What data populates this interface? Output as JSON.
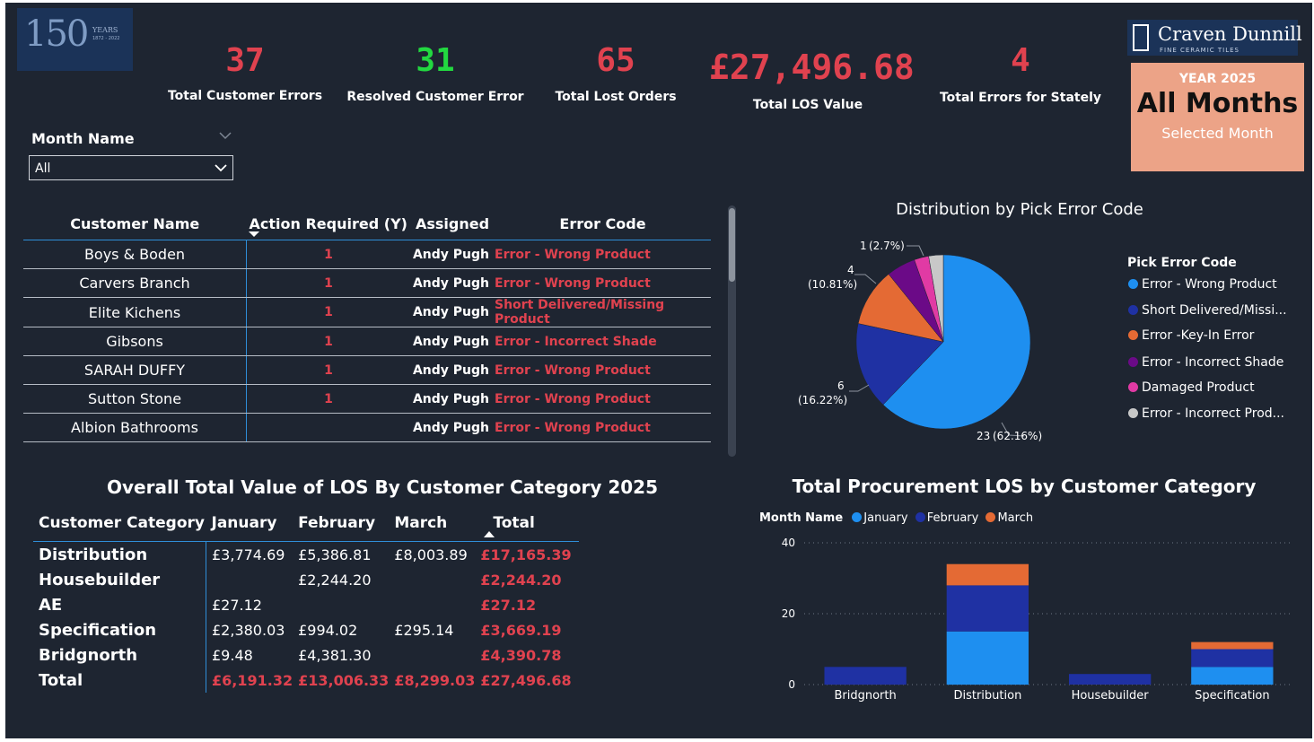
{
  "header": {
    "logo_150": {
      "text": "150",
      "years": "YEARS",
      "range": "1872 - 2022"
    },
    "brand": {
      "name": "Craven Dunnill",
      "tagline": "FINE CERAMIC TILES"
    },
    "year_box": {
      "year_label": "YEAR 2025",
      "months": "All Months",
      "caption": "Selected Month"
    }
  },
  "kpis": [
    {
      "value": "37",
      "label": "Total Customer Errors",
      "color": "#e0424f"
    },
    {
      "value": "31",
      "label": "Resolved Customer Error",
      "color": "#22d840"
    },
    {
      "value": "65",
      "label": "Total Lost Orders",
      "color": "#e0424f"
    },
    {
      "value": "£27,496.68",
      "label": "Total LOS Value",
      "color": "#e0424f"
    },
    {
      "value": "4",
      "label": "Total Errors for Stately",
      "color": "#e0424f"
    }
  ],
  "slicer": {
    "title": "Month Name",
    "value": "All"
  },
  "customer_table": {
    "headers": [
      "Customer Name",
      "Action Required (Y)",
      "Assigned",
      "Error Code"
    ],
    "rows": [
      {
        "name": "Boys & Boden",
        "action": "1",
        "assigned": "Andy Pugh",
        "error": "Error - Wrong Product"
      },
      {
        "name": "Carvers Branch",
        "action": "1",
        "assigned": "Andy Pugh",
        "error": "Error - Wrong Product"
      },
      {
        "name": "Elite Kichens",
        "action": "1",
        "assigned": "Andy Pugh",
        "error": "Short Delivered/Missing Product"
      },
      {
        "name": "Gibsons",
        "action": "1",
        "assigned": "Andy Pugh",
        "error": "Error - Incorrect Shade"
      },
      {
        "name": "SARAH DUFFY",
        "action": "1",
        "assigned": "Andy Pugh",
        "error": "Error - Wrong Product"
      },
      {
        "name": "Sutton Stone",
        "action": "1",
        "assigned": "Andy Pugh",
        "error": "Error - Wrong Product"
      },
      {
        "name": "Albion Bathrooms",
        "action": "",
        "assigned": "Andy Pugh",
        "error": "Error - Wrong Product"
      }
    ]
  },
  "matrix": {
    "title": "Overall Total Value of LOS By Customer Category 2025",
    "headers": [
      "Customer Category",
      "January",
      "February",
      "March",
      "Total"
    ],
    "rows": [
      {
        "cat": "Distribution",
        "jan": "£3,774.69",
        "feb": "£5,386.81",
        "mar": "£8,003.89",
        "total": "£17,165.39"
      },
      {
        "cat": "Housebuilder",
        "jan": "",
        "feb": "£2,244.20",
        "mar": "",
        "total": "£2,244.20"
      },
      {
        "cat": "AE",
        "jan": "£27.12",
        "feb": "",
        "mar": "",
        "total": "£27.12"
      },
      {
        "cat": "Specification",
        "jan": "£2,380.03",
        "feb": "£994.02",
        "mar": "£295.14",
        "total": "£3,669.19"
      },
      {
        "cat": "Bridgnorth",
        "jan": "£9.48",
        "feb": "£4,381.30",
        "mar": "",
        "total": "£4,390.78"
      },
      {
        "cat": "Total",
        "jan": "£6,191.32",
        "feb": "£13,006.33",
        "mar": "£8,299.03",
        "total": "£27,496.68"
      }
    ]
  },
  "chart_data": [
    {
      "type": "pie",
      "title": "Distribution by Pick Error Code",
      "legend_title": "Pick Error Code",
      "legend_position": "right",
      "slices": [
        {
          "label": "Error - Wrong Product",
          "value": 23,
          "color": "#1e8ff0"
        },
        {
          "label": "Short Delivered/Missi...",
          "value": 6,
          "color": "#1f31a3"
        },
        {
          "label": "Error -Key-In Error",
          "value": 4,
          "color": "#e46a34"
        },
        {
          "label": "Error - Incorrect Shade",
          "value": 2,
          "color": "#6b0a87"
        },
        {
          "label": "Damaged Product",
          "value": 1,
          "color": "#e13aa4"
        },
        {
          "label": "Error - Incorrect Prod...",
          "value": 1,
          "color": "#c8c8c8"
        }
      ],
      "data_labels": [
        {
          "count": "23",
          "pct": "(62.16%)"
        },
        {
          "count": "6",
          "pct": "(16.22%)"
        },
        {
          "count": "4",
          "pct": "(10.81%)"
        },
        {
          "count": "1",
          "pct": "(2.7%)"
        }
      ]
    },
    {
      "type": "bar",
      "stacked": true,
      "title": "Total Procurement LOS by Customer Category",
      "legend_title": "Month Name",
      "legend_position": "top-left",
      "categories": [
        "Bridgnorth",
        "Distribution",
        "Housebuilder",
        "Specification"
      ],
      "series": [
        {
          "name": "January",
          "color": "#1e8ff0",
          "values": [
            0,
            15,
            0,
            5
          ]
        },
        {
          "name": "February",
          "color": "#1f31a3",
          "values": [
            5,
            13,
            3,
            5
          ]
        },
        {
          "name": "March",
          "color": "#e46a34",
          "values": [
            0,
            6,
            0,
            2
          ]
        }
      ],
      "ylim": [
        0,
        40
      ],
      "yticks": [
        "0",
        "20",
        "40"
      ],
      "grid": true
    }
  ]
}
